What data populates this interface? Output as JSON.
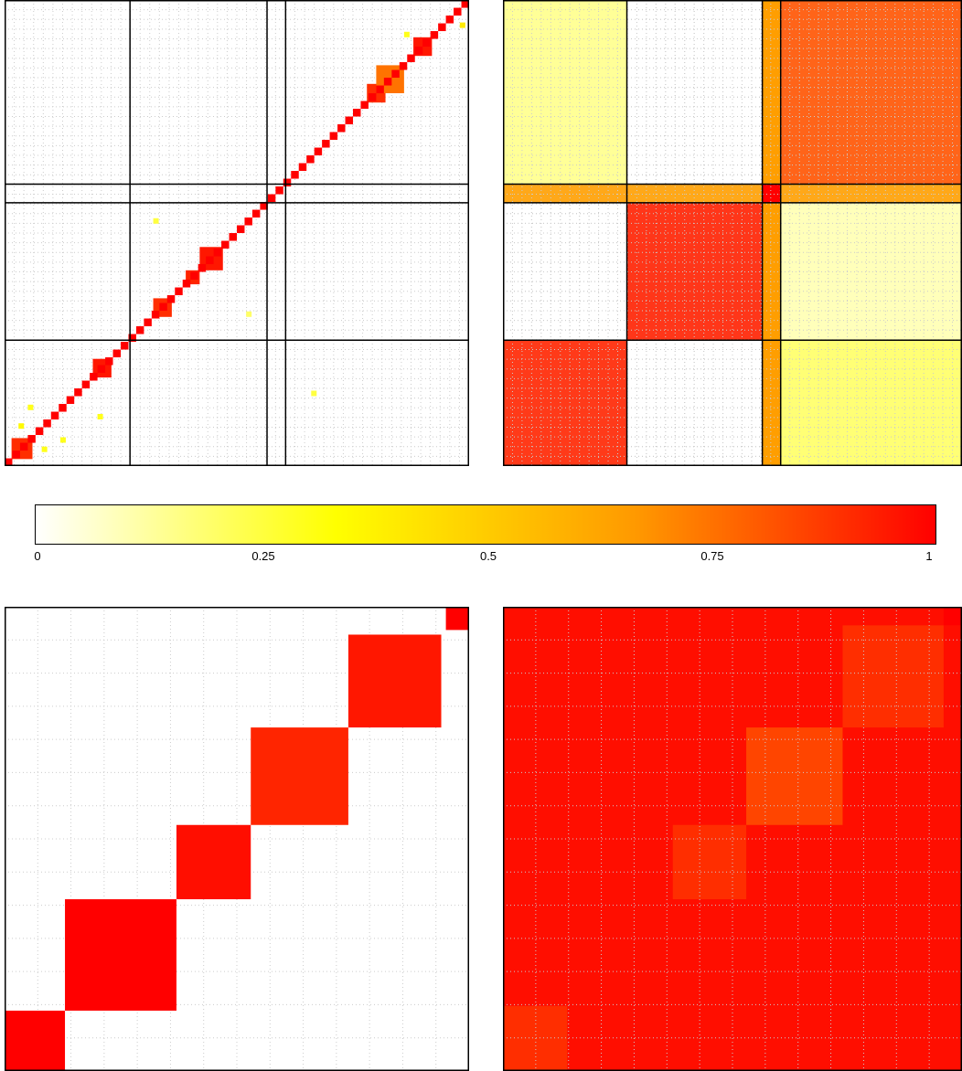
{
  "chart_data": [
    {
      "type": "heatmap",
      "panel": "top-left",
      "title": "",
      "value_range": [
        0,
        1
      ],
      "description_colors": "block-diagonal similarity matrix",
      "separators_fraction": [
        0.27,
        0.565,
        0.605
      ],
      "diagonal_blocks": [
        {
          "from": 0.0,
          "to": 0.01,
          "value": 1
        },
        {
          "from": 0.015,
          "to": 0.06,
          "value": 0.9
        },
        {
          "from": 0.19,
          "to": 0.23,
          "value": 0.95
        },
        {
          "from": 0.32,
          "to": 0.36,
          "value": 0.9
        },
        {
          "from": 0.39,
          "to": 0.42,
          "value": 0.92
        },
        {
          "from": 0.42,
          "to": 0.47,
          "value": 0.95
        },
        {
          "from": 0.78,
          "to": 0.82,
          "value": 0.9
        },
        {
          "from": 0.8,
          "to": 0.86,
          "value": 0.75
        },
        {
          "from": 0.88,
          "to": 0.92,
          "value": 0.95
        }
      ]
    },
    {
      "type": "heatmap",
      "panel": "top-right",
      "title": "",
      "value_range": [
        0,
        1
      ],
      "separators_fraction": [
        0.27,
        0.565,
        0.605
      ],
      "blocks": [
        {
          "rows": [
            0.0,
            0.27
          ],
          "cols": [
            0.0,
            0.27
          ],
          "value": 0.92
        },
        {
          "rows": [
            0.27,
            0.565
          ],
          "cols": [
            0.27,
            0.565
          ],
          "value": 0.93
        },
        {
          "rows": [
            0.565,
            0.605
          ],
          "cols": [
            0.565,
            0.605
          ],
          "value": 1.0
        },
        {
          "rows": [
            0.605,
            1.0
          ],
          "cols": [
            0.605,
            1.0
          ],
          "value": 0.82
        },
        {
          "rows": [
            0.565,
            0.605
          ],
          "cols": [
            0.0,
            1.0
          ],
          "value": 0.65
        },
        {
          "rows": [
            0.605,
            1.0
          ],
          "cols": [
            0.0,
            0.27
          ],
          "value": 0.15
        },
        {
          "rows": [
            0.0,
            0.27
          ],
          "cols": [
            0.605,
            1.0
          ],
          "value": 0.2
        },
        {
          "rows": [
            0.27,
            0.565
          ],
          "cols": [
            0.605,
            1.0
          ],
          "value": 0.1
        }
      ]
    },
    {
      "type": "heatmap",
      "panel": "bottom-left",
      "title": "",
      "value_range": [
        0,
        1
      ],
      "diagonal_blocks": [
        {
          "from": 0.0,
          "to": 0.13,
          "value": 1
        },
        {
          "from": 0.13,
          "to": 0.37,
          "value": 1
        },
        {
          "from": 0.37,
          "to": 0.53,
          "value": 0.97
        },
        {
          "from": 0.53,
          "to": 0.74,
          "value": 0.92
        },
        {
          "from": 0.74,
          "to": 0.94,
          "value": 0.95
        },
        {
          "from": 0.95,
          "to": 1.0,
          "value": 1
        }
      ]
    },
    {
      "type": "heatmap",
      "panel": "bottom-right",
      "title": "",
      "value_range": [
        0,
        1
      ],
      "background_value": 0.97,
      "diagonal_blocks": [
        {
          "from": 0.0,
          "to": 0.14,
          "value": 0.9
        },
        {
          "from": 0.14,
          "to": 0.37,
          "value": 0.97
        },
        {
          "from": 0.37,
          "to": 0.53,
          "value": 0.9
        },
        {
          "from": 0.53,
          "to": 0.74,
          "value": 0.85
        },
        {
          "from": 0.74,
          "to": 0.96,
          "value": 0.9
        },
        {
          "from": 0.96,
          "to": 1.0,
          "value": 1
        }
      ]
    }
  ],
  "colorbar": {
    "ticks": [
      {
        "value": 0,
        "label": "0"
      },
      {
        "value": 0.25,
        "label": "0.25"
      },
      {
        "value": 0.5,
        "label": "0.5"
      },
      {
        "value": 0.75,
        "label": "0.75"
      },
      {
        "value": 1,
        "label": "1"
      }
    ],
    "colors": [
      "#ffffff",
      "#ffff00",
      "#ff9900",
      "#ff0000"
    ]
  }
}
